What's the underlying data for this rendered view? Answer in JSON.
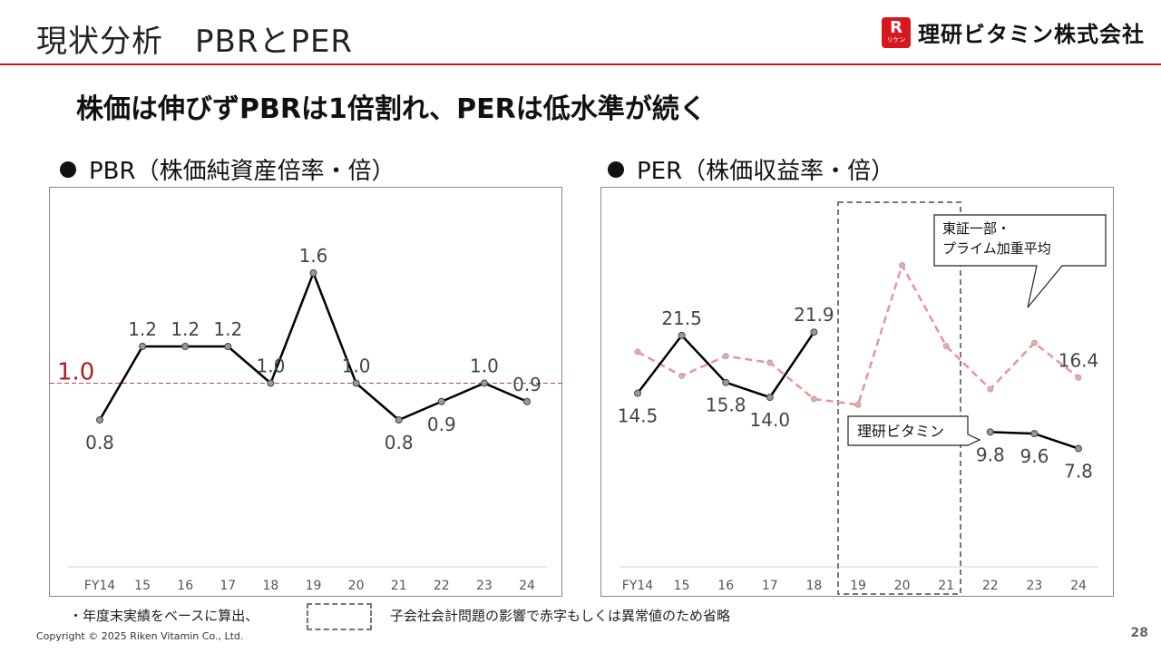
{
  "header": {
    "title": "現状分析　PBRとPER"
  },
  "brand": {
    "mark": "R",
    "mark_sub": "リケン",
    "name": "理研ビタミン株式会社"
  },
  "headline": "株価は伸びずPBRは1倍割れ、PERは低水準が続く",
  "colors": {
    "accent": "#b01c22",
    "riken_line": "#000000",
    "market_line": "#e89595",
    "marker": "#999999"
  },
  "chart_data": [
    {
      "type": "line",
      "title": "PBR（株価純資産倍率・倍）",
      "categories": [
        "FY14",
        "15",
        "16",
        "17",
        "18",
        "19",
        "20",
        "21",
        "22",
        "23",
        "24"
      ],
      "series": [
        {
          "values": [
            0.8,
            1.2,
            1.2,
            1.2,
            1.0,
            1.6,
            1.0,
            0.8,
            0.9,
            1.0,
            0.9
          ],
          "labels": [
            "0.8",
            "1.2",
            "1.2",
            "1.2",
            "1.0",
            "1.6",
            "1.0",
            "0.8",
            "0.9",
            "1.0",
            "0.9"
          ]
        }
      ],
      "reference_line": {
        "value": 1.0,
        "label": "1.0"
      },
      "grid": false,
      "legend": "none"
    },
    {
      "type": "line",
      "title": "PER（株価収益率・倍）",
      "categories": [
        "FY14",
        "15",
        "16",
        "17",
        "18",
        "19",
        "20",
        "21",
        "22",
        "23",
        "24"
      ],
      "series": [
        {
          "name": "理研ビタミン",
          "values": [
            14.5,
            21.5,
            15.8,
            14.0,
            21.9,
            null,
            null,
            null,
            9.8,
            9.6,
            7.8
          ],
          "labels": [
            "14.5",
            "21.5",
            "15.8",
            "14.0",
            "21.9",
            "",
            "",
            "",
            "9.8",
            "9.6",
            "7.8"
          ]
        },
        {
          "name": "東証一部・\nプライム加重平均",
          "values": [
            19.5,
            16.6,
            19.0,
            18.2,
            13.8,
            13.1,
            30.0,
            20.2,
            15.0,
            20.6,
            16.4
          ],
          "labels": [
            "",
            "",
            "",
            "",
            "",
            "",
            "",
            "",
            "",
            "",
            "16.4"
          ]
        }
      ],
      "excluded_range": [
        "19",
        "21"
      ],
      "grid": false,
      "legend": "callouts"
    }
  ],
  "footnote": {
    "prefix": "・年度末実績をベースに算出、",
    "legend_text": "子会社会計問題の影響で赤字もしくは異常値のため省略"
  },
  "copyright": "Copyright © 2025 Riken Vitamin Co., Ltd.",
  "page_number": "28"
}
